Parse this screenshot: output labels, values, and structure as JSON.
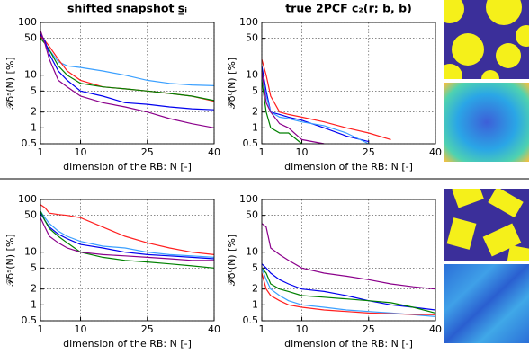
{
  "chart_data": [
    {
      "type": "line",
      "title": "shifted snapshot s̲ᵢ",
      "xlabel": "dimension of the RB: N [-]",
      "ylabel": "𝒫δˢ(N) [%]",
      "yscale": "log",
      "grid": true,
      "xlim": [
        1,
        40
      ],
      "xticks": [
        1,
        10,
        25,
        40
      ],
      "ylim": [
        0.5,
        100
      ],
      "yticks": [
        0.5,
        1,
        2,
        5,
        10,
        50,
        100
      ],
      "x": [
        1,
        2,
        3,
        5,
        7,
        10,
        15,
        20,
        25,
        30,
        35,
        40
      ],
      "series": [
        {
          "color": "#3ba0ff",
          "values": [
            60,
            40,
            30,
            18,
            15,
            14,
            12,
            10,
            8,
            7,
            6.5,
            6.3
          ]
        },
        {
          "color": "#ff2020",
          "values": [
            55,
            45,
            35,
            20,
            12,
            8,
            6,
            5.5,
            5,
            4.5,
            4,
            3.2
          ]
        },
        {
          "color": "#008000",
          "values": [
            50,
            40,
            30,
            15,
            10,
            7,
            6,
            5.5,
            5,
            4.5,
            4,
            3.3
          ]
        },
        {
          "color": "#0000ee",
          "values": [
            60,
            45,
            25,
            12,
            8,
            5,
            4,
            3,
            2.8,
            2.5,
            2.3,
            2.2
          ]
        },
        {
          "color": "#8b008b",
          "values": [
            70,
            40,
            20,
            8,
            6,
            4,
            3,
            2.5,
            2,
            1.5,
            1.2,
            1
          ]
        }
      ]
    },
    {
      "type": "line",
      "title": "true 2PCF c₂(r; b, b)",
      "xlabel": "dimension of the RB: N [-]",
      "ylabel": "𝒫δᵗ(N) [%]",
      "yscale": "log",
      "grid": true,
      "xlim": [
        1,
        40
      ],
      "xticks": [
        1,
        10,
        25,
        40
      ],
      "ylim": [
        0.5,
        100
      ],
      "yticks": [
        0.5,
        1,
        2,
        5,
        10,
        50,
        100
      ],
      "x": [
        1,
        2,
        3,
        5,
        7,
        10,
        15,
        20,
        25,
        30,
        35,
        40
      ],
      "series": [
        {
          "color": "#ff2020",
          "values": [
            20,
            10,
            4,
            2,
            1.8,
            1.6,
            1.3,
            1,
            0.8,
            0.6,
            null,
            null
          ]
        },
        {
          "color": "#0000ee",
          "values": [
            15,
            5,
            2,
            1.8,
            1.6,
            1.4,
            1,
            0.7,
            0.55,
            null,
            null,
            null
          ]
        },
        {
          "color": "#3ba0ff",
          "values": [
            10,
            4,
            2,
            1.6,
            1.5,
            1.3,
            1.1,
            0.8,
            0.5,
            null,
            null,
            null
          ]
        },
        {
          "color": "#008000",
          "values": [
            8,
            2,
            1,
            0.8,
            0.8,
            0.5,
            null,
            null,
            null,
            null,
            null,
            null
          ]
        },
        {
          "color": "#8b008b",
          "values": [
            12,
            3,
            2,
            1.2,
            1,
            0.6,
            0.5,
            null,
            null,
            null,
            null,
            null
          ]
        }
      ]
    },
    {
      "type": "line",
      "xlabel": "dimension of the RB: N [-]",
      "ylabel": "𝒫δˢ(N) [%]",
      "yscale": "log",
      "grid": true,
      "xlim": [
        1,
        40
      ],
      "xticks": [
        1,
        10,
        25,
        40
      ],
      "ylim": [
        0.5,
        100
      ],
      "yticks": [
        0.5,
        1,
        2,
        5,
        10,
        50,
        100
      ],
      "x": [
        1,
        2,
        3,
        5,
        7,
        10,
        15,
        20,
        25,
        30,
        35,
        40
      ],
      "series": [
        {
          "color": "#ff2020",
          "values": [
            80,
            70,
            55,
            52,
            50,
            45,
            30,
            20,
            15,
            12,
            10,
            9
          ]
        },
        {
          "color": "#3ba0ff",
          "values": [
            60,
            45,
            35,
            25,
            20,
            16,
            13,
            12,
            10,
            9,
            8.5,
            8
          ]
        },
        {
          "color": "#0000ee",
          "values": [
            55,
            40,
            30,
            22,
            18,
            14,
            12,
            10,
            9,
            8.5,
            8,
            7.5
          ]
        },
        {
          "color": "#008000",
          "values": [
            60,
            40,
            28,
            20,
            15,
            10,
            8,
            7,
            6.5,
            6,
            5.5,
            5
          ]
        },
        {
          "color": "#8b008b",
          "values": [
            45,
            30,
            20,
            15,
            12,
            10,
            9,
            8.5,
            8,
            7.5,
            7,
            7
          ]
        }
      ]
    },
    {
      "type": "line",
      "xlabel": "dimension of the RB: N [-]",
      "ylabel": "𝒫δᵗ(N) [%]",
      "yscale": "log",
      "grid": true,
      "xlim": [
        1,
        40
      ],
      "xticks": [
        1,
        10,
        25,
        40
      ],
      "ylim": [
        0.5,
        100
      ],
      "yticks": [
        0.5,
        1,
        2,
        5,
        10,
        50,
        100
      ],
      "x": [
        1,
        2,
        3,
        5,
        7,
        10,
        15,
        20,
        25,
        30,
        35,
        40
      ],
      "series": [
        {
          "color": "#8b008b",
          "values": [
            35,
            30,
            12,
            9,
            7,
            5,
            4,
            3.5,
            3,
            2.5,
            2.2,
            2
          ]
        },
        {
          "color": "#0000ee",
          "values": [
            6,
            5,
            4,
            3,
            2.5,
            2,
            1.8,
            1.5,
            1.2,
            1,
            0.9,
            0.8
          ]
        },
        {
          "color": "#008000",
          "values": [
            5,
            4,
            2.5,
            2,
            1.8,
            1.5,
            1.4,
            1.3,
            1.2,
            1.1,
            0.9,
            0.7
          ]
        },
        {
          "color": "#3ba0ff",
          "values": [
            5,
            3,
            2,
            1.5,
            1.2,
            1,
            0.9,
            0.8,
            0.75,
            0.7,
            0.65,
            0.6
          ]
        },
        {
          "color": "#ff2020",
          "values": [
            4,
            2,
            1.5,
            1.2,
            1,
            0.9,
            0.8,
            0.75,
            0.7,
            0.68,
            0.66,
            0.65
          ]
        }
      ]
    }
  ]
}
